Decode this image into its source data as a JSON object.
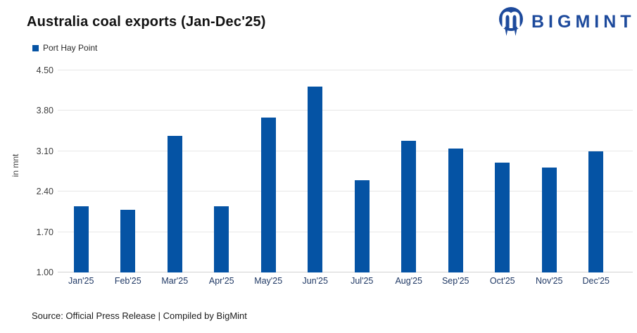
{
  "header": {
    "title": "Australia coal exports (Jan-Dec'25)"
  },
  "logo": {
    "text": "BIGMINT",
    "color": "#1d4a9c"
  },
  "legend": {
    "label": "Port Hay Point"
  },
  "chart_data": {
    "type": "bar",
    "title": "Australia coal exports (Jan-Dec'25)",
    "series": [
      {
        "name": "Port Hay Point",
        "values": [
          2.15,
          2.08,
          3.36,
          2.15,
          3.68,
          4.22,
          2.6,
          3.28,
          3.15,
          2.9,
          2.82,
          3.1
        ]
      }
    ],
    "categories": [
      "Jan'25",
      "Feb'25",
      "Mar'25",
      "Apr'25",
      "May'25",
      "Jun'25",
      "Jul'25",
      "Aug'25",
      "Sep'25",
      "Oct'25",
      "Nov'25",
      "Dec'25"
    ],
    "xlabel": "",
    "ylabel": "in mnt",
    "ylim": [
      1.0,
      4.5
    ],
    "yticks": [
      1.0,
      1.7,
      2.4,
      3.1,
      3.8,
      4.5
    ],
    "grid": true,
    "legend_position": "top-left",
    "bar_color": "#0553a4"
  },
  "footer": {
    "source": "Source: Official Press Release | Compiled by BigMint"
  },
  "colors": {
    "bar": "#0553a4",
    "brand": "#1d4a9c",
    "gridline": "#e7e7e7"
  }
}
